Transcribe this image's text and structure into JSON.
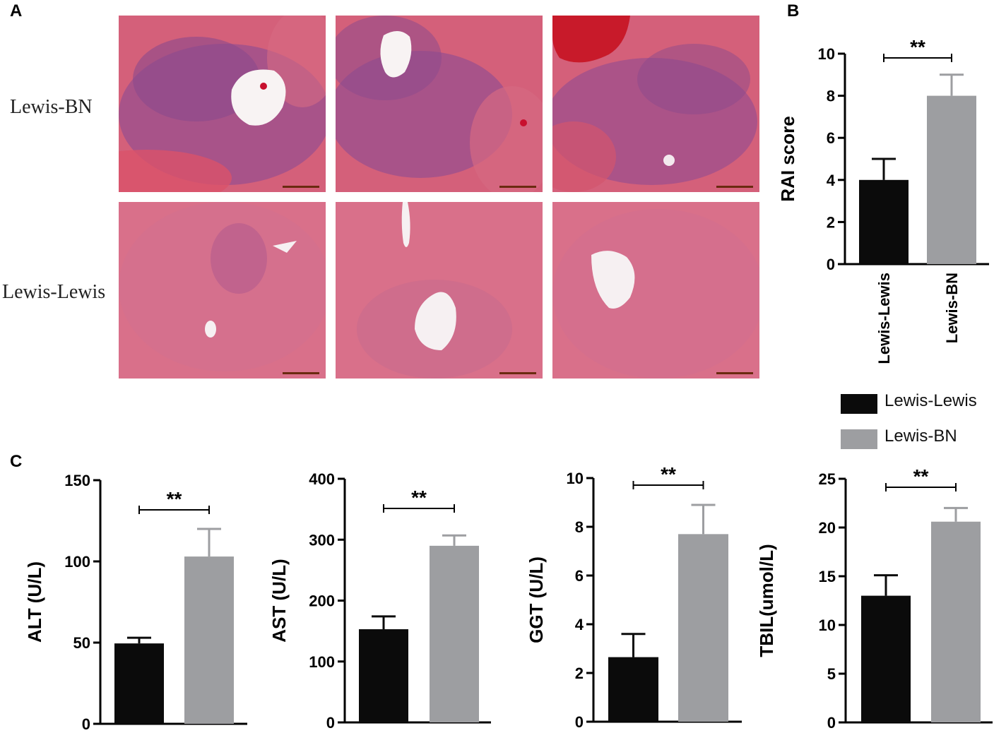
{
  "figure": {
    "panel_letters": [
      "A",
      "B",
      "C"
    ],
    "histology": {
      "row_labels": [
        "Lewis-BN",
        "Lewis-Lewis"
      ]
    },
    "legend": {
      "items": [
        {
          "label": "Lewis-Lewis",
          "color": "#0b0b0b"
        },
        {
          "label": "Lewis-BN",
          "color": "#9d9ea1"
        }
      ]
    }
  },
  "chart_data": [
    {
      "id": "rai",
      "type": "bar",
      "categories": [
        "Lewis-Lewis",
        "Lewis-BN"
      ],
      "values": [
        4,
        8
      ],
      "errors": [
        1,
        1
      ],
      "colors": [
        "#0b0b0b",
        "#9d9ea1"
      ],
      "ylabel": "RAI score",
      "ylim": [
        0,
        10
      ],
      "yticks": [
        0,
        2,
        4,
        6,
        8,
        10
      ],
      "significance": "**",
      "show_xticklabels": true
    },
    {
      "id": "alt",
      "type": "bar",
      "categories": [
        "Lewis-Lewis",
        "Lewis-BN"
      ],
      "values": [
        49.5,
        103
      ],
      "errors": [
        3.5,
        17
      ],
      "colors": [
        "#0b0b0b",
        "#9d9ea1"
      ],
      "ylabel": "ALT (U/L)",
      "ylim": [
        0,
        150
      ],
      "yticks": [
        0,
        50,
        100,
        150
      ],
      "significance": "**",
      "show_xticklabels": false
    },
    {
      "id": "ast",
      "type": "bar",
      "categories": [
        "Lewis-Lewis",
        "Lewis-BN"
      ],
      "values": [
        153,
        290
      ],
      "errors": [
        21,
        17
      ],
      "colors": [
        "#0b0b0b",
        "#9d9ea1"
      ],
      "ylabel": "AST (U/L)",
      "ylim": [
        0,
        400
      ],
      "yticks": [
        0,
        100,
        200,
        300,
        400
      ],
      "significance": "**",
      "show_xticklabels": false
    },
    {
      "id": "ggt",
      "type": "bar",
      "categories": [
        "Lewis-Lewis",
        "Lewis-BN"
      ],
      "values": [
        2.65,
        7.7
      ],
      "errors": [
        0.95,
        1.2
      ],
      "colors": [
        "#0b0b0b",
        "#9d9ea1"
      ],
      "ylabel": "GGT (U/L)",
      "ylim": [
        0,
        10
      ],
      "yticks": [
        0,
        2,
        4,
        6,
        8,
        10
      ],
      "significance": "**",
      "show_xticklabels": false
    },
    {
      "id": "tbil",
      "type": "bar",
      "categories": [
        "Lewis-Lewis",
        "Lewis-BN"
      ],
      "values": [
        13,
        20.6
      ],
      "errors": [
        2.1,
        1.4
      ],
      "colors": [
        "#0b0b0b",
        "#9d9ea1"
      ],
      "ylabel": "TBIL(umol/L)",
      "ylim": [
        0,
        25
      ],
      "yticks": [
        0,
        5,
        10,
        15,
        20,
        25
      ],
      "significance": "**",
      "show_xticklabels": false
    }
  ]
}
